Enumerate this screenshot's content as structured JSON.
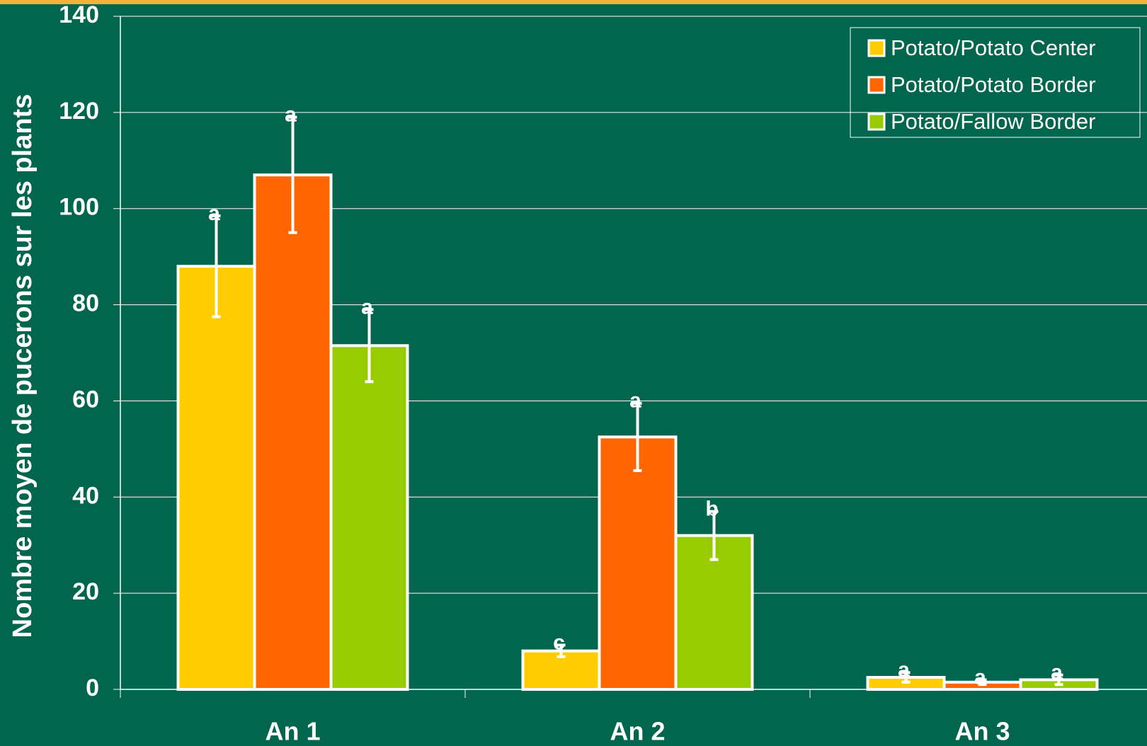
{
  "chart_data": {
    "type": "bar",
    "y_label": "Nombre moyen de pucerons sur les plants",
    "categories": [
      "An 1",
      "An 2",
      "An 3"
    ],
    "series": [
      {
        "name": "Potato/Potato Center",
        "color": "#ffcc00",
        "values": [
          88,
          8,
          2.5
        ],
        "errors": [
          10.5,
          1.2,
          1
        ],
        "letters": [
          "a",
          "c",
          "a"
        ]
      },
      {
        "name": "Potato/Potato Border",
        "color": "#ff6600",
        "values": [
          107,
          52.5,
          1.5
        ],
        "errors": [
          12,
          7,
          0.5
        ],
        "letters": [
          "a",
          "a",
          "a"
        ]
      },
      {
        "name": "Potato/Fallow Border",
        "color": "#99cc00",
        "values": [
          71.5,
          32,
          2
        ],
        "errors": [
          7.5,
          5,
          1
        ],
        "letters": [
          "a",
          "b",
          "a"
        ]
      }
    ],
    "ylim": [
      0,
      140
    ],
    "yticks": [
      0,
      20,
      40,
      60,
      80,
      100,
      120,
      140
    ],
    "grid": true,
    "legend": "top-right"
  }
}
